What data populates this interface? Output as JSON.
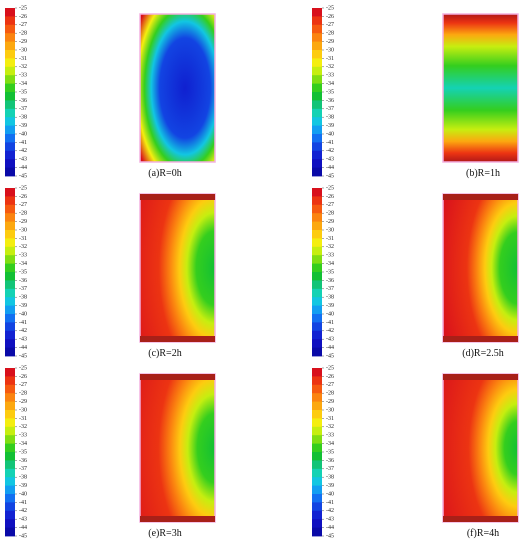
{
  "colormap": [
    "#d8101c",
    "#ec3412",
    "#f65a10",
    "#fb8410",
    "#fca810",
    "#fdcc10",
    "#f4ee10",
    "#c6ee10",
    "#80de12",
    "#34ce1e",
    "#12c034",
    "#12c478",
    "#14d2b4",
    "#12c6e2",
    "#129ef2",
    "#1270f2",
    "#1244e2",
    "#1222d2",
    "#1010c0",
    "#0a0aa8"
  ],
  "panels": [
    {
      "caption": "(a)R=0h",
      "colorbar": {
        "ticks": [
          -25,
          -26,
          -27,
          -28,
          -29,
          -30,
          -31,
          -32,
          -33,
          -34,
          -35,
          -36,
          -37,
          -38,
          -39,
          -40,
          -41,
          -42,
          -43,
          -44,
          -45
        ]
      }
    },
    {
      "caption": "(b)R=1h",
      "colorbar": {
        "ticks": [
          -25,
          -26,
          -27,
          -28,
          -29,
          -30,
          -31,
          -32,
          -33,
          -34,
          -35,
          -36,
          -37,
          -38,
          -39,
          -40,
          -41,
          -42,
          -43,
          -44,
          -45
        ]
      }
    },
    {
      "caption": "(c)R=2h",
      "colorbar": {
        "ticks": [
          -25,
          -26,
          -27,
          -28,
          -29,
          -30,
          -31,
          -32,
          -33,
          -34,
          -35,
          -36,
          -37,
          -38,
          -39,
          -40,
          -41,
          -42,
          -43,
          -44,
          -45
        ]
      }
    },
    {
      "caption": "(d)R=2.5h",
      "colorbar": {
        "ticks": [
          -25,
          -26,
          -27,
          -28,
          -29,
          -30,
          -31,
          -32,
          -33,
          -34,
          -35,
          -36,
          -37,
          -38,
          -39,
          -40,
          -41,
          -42,
          -43,
          -44,
          -45
        ]
      }
    },
    {
      "caption": "(e)R=3h",
      "colorbar": {
        "ticks": [
          -25,
          -26,
          -27,
          -28,
          -29,
          -30,
          -31,
          -32,
          -33,
          -34,
          -35,
          -36,
          -37,
          -38,
          -39,
          -40,
          -41,
          -42,
          -43,
          -44,
          -45
        ]
      }
    },
    {
      "caption": "(f)R=4h",
      "colorbar": {
        "ticks": [
          -25,
          -26,
          -27,
          -28,
          -29,
          -30,
          -31,
          -32,
          -33,
          -34,
          -35,
          -36,
          -37,
          -38,
          -39,
          -40,
          -41,
          -42,
          -43,
          -44,
          -45
        ]
      }
    }
  ]
}
